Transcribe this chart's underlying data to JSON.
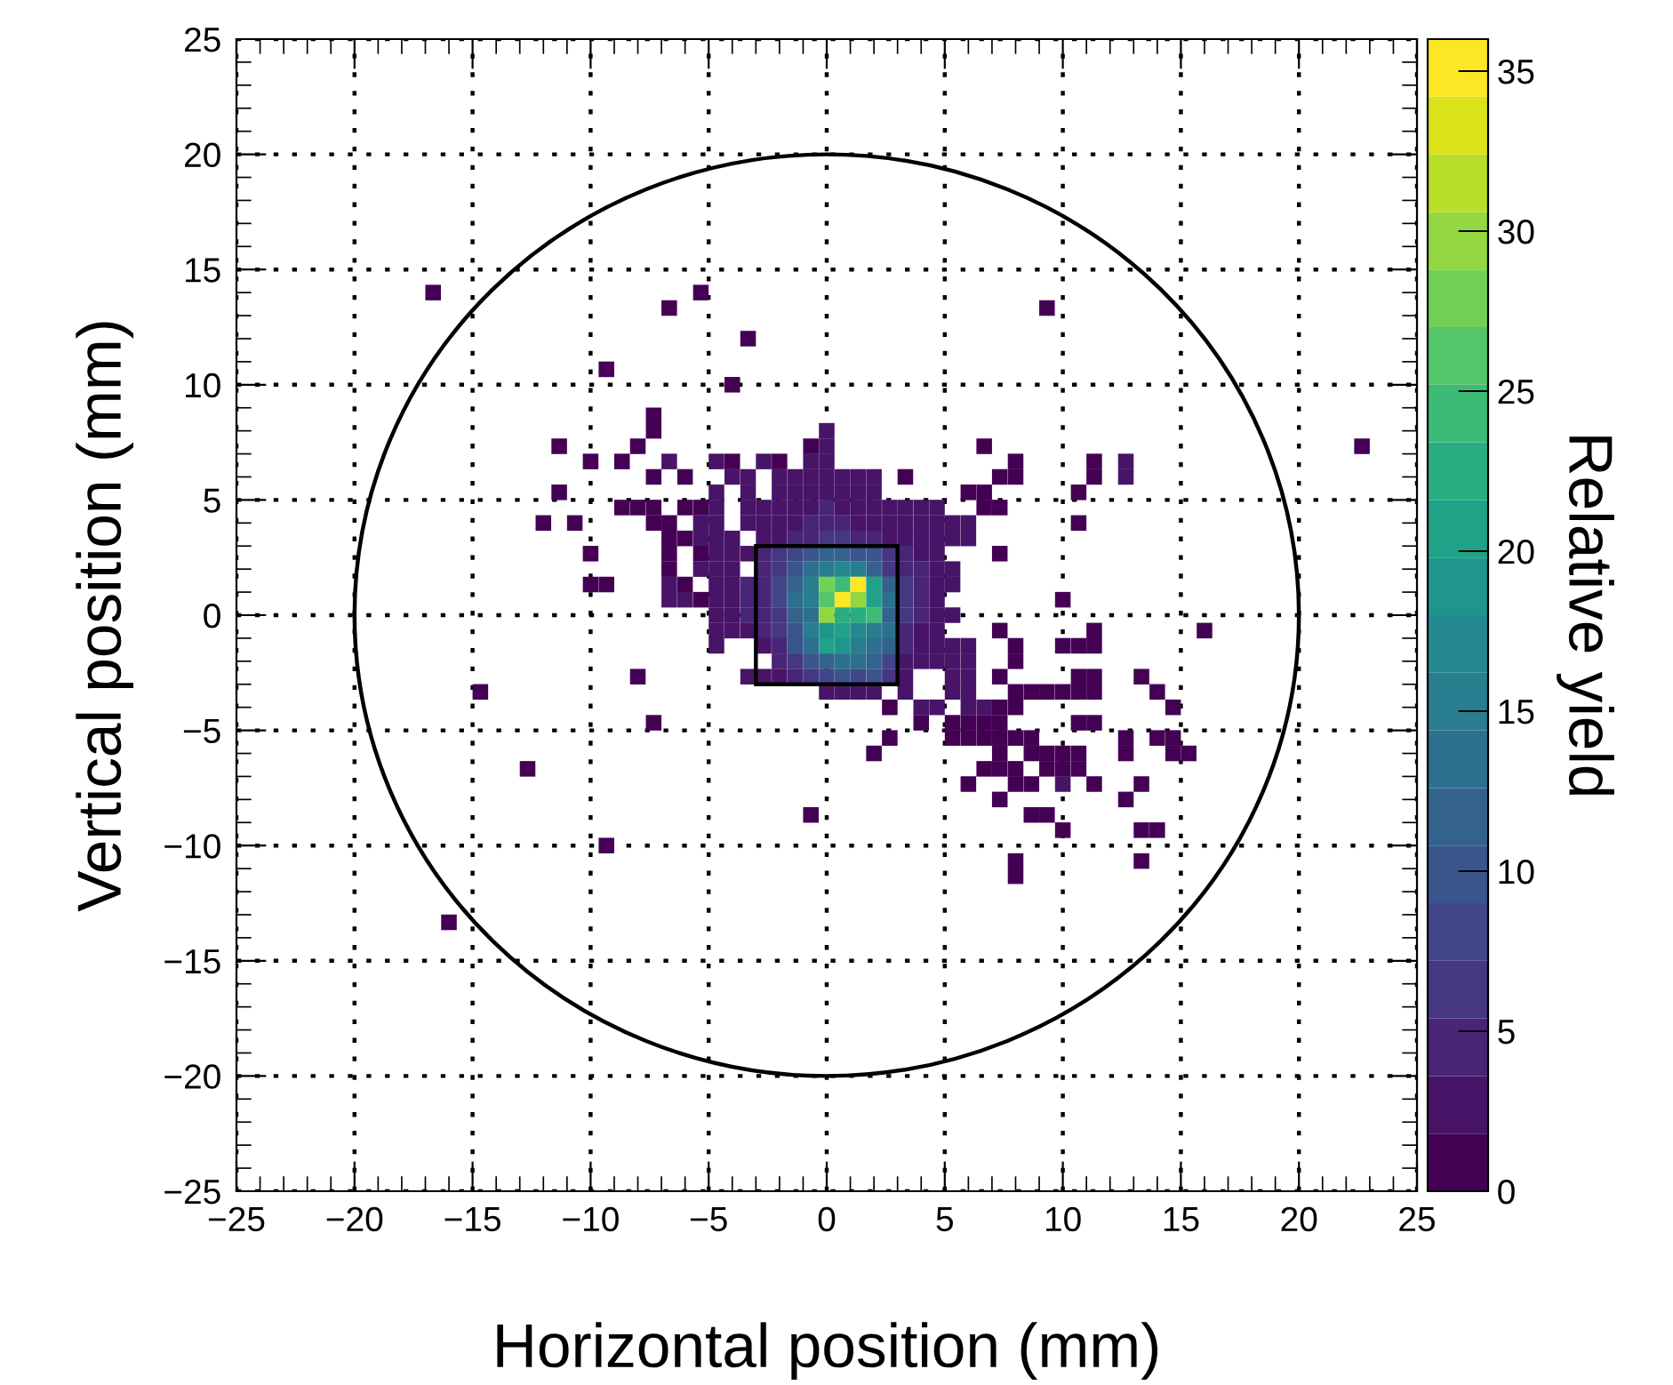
{
  "chart_data": {
    "type": "scatter",
    "xlabel": "Horizontal position (mm)",
    "ylabel": "Vertical position (mm)",
    "clabel": "Relative yield",
    "xlim": [
      -25,
      25
    ],
    "ylim": [
      -25,
      25
    ],
    "xticks": [
      {
        "value": -25,
        "label": "−25"
      },
      {
        "value": -20,
        "label": "−20"
      },
      {
        "value": -15,
        "label": "−15"
      },
      {
        "value": -10,
        "label": "−10"
      },
      {
        "value": -5,
        "label": "−5"
      },
      0,
      5,
      10,
      15,
      20,
      25
    ],
    "yticks": [
      {
        "value": -25,
        "label": "−25"
      },
      {
        "value": -20,
        "label": "−20"
      },
      {
        "value": -15,
        "label": "−15"
      },
      {
        "value": -10,
        "label": "−10"
      },
      {
        "value": -5,
        "label": "−5"
      },
      0,
      5,
      10,
      15,
      20,
      25
    ],
    "clim": [
      0,
      36
    ],
    "cticks": [
      0,
      5,
      10,
      15,
      20,
      25,
      30,
      35
    ],
    "grid": true,
    "series": [
      {
        "marker": "square",
        "x": [
          -16.67,
          -5.33,
          -6.67,
          9.33,
          -3.33,
          -9.33,
          -4,
          -7.33,
          -7.33,
          0,
          -11.33,
          -8,
          -0.67,
          0,
          6.67,
          22.67,
          -10,
          -8.67,
          -6.67,
          -4.67,
          -4,
          -2.67,
          -2,
          -0.67,
          0,
          8,
          11.33,
          12.67,
          -7.33,
          -6,
          -4,
          -3.33,
          -2,
          -1.33,
          -0.67,
          0,
          0.67,
          1.33,
          2,
          3.33,
          7.33,
          8,
          11.33,
          12.67,
          -11.33,
          -4.67,
          -3.33,
          -2,
          -1.33,
          -0.67,
          0,
          0.67,
          1.33,
          2,
          6,
          6.67,
          10.67,
          -8.67,
          -8,
          -7.33,
          -6,
          -5.33,
          -4.67,
          -3.33,
          -2.67,
          -2,
          -1.33,
          -0.67,
          0,
          0.67,
          1.33,
          2,
          2.67,
          3.33,
          4,
          4.67,
          6.67,
          7.33,
          -12,
          -10.67,
          -7.33,
          -6.67,
          -5.33,
          -4.67,
          -3.33,
          -2.67,
          -2,
          -1.33,
          -0.67,
          0,
          0.67,
          1.33,
          2,
          2.67,
          3.33,
          4,
          4.67,
          5.33,
          6,
          10.67,
          -6.67,
          -6,
          -5.33,
          -4.67,
          -4,
          -2.67,
          -2,
          -1.33,
          -0.67,
          0,
          0.67,
          1.33,
          2,
          2.67,
          3.33,
          4,
          4.67,
          5.33,
          6,
          -10,
          -6.67,
          -5.33,
          -4.67,
          -4,
          -3.33,
          -2.67,
          -2,
          -1.33,
          -0.67,
          0,
          0.67,
          1.33,
          2,
          2.67,
          3.33,
          4,
          4.67,
          7.33,
          -6.67,
          -5.33,
          -4.67,
          -4,
          -2.67,
          -2,
          -1.33,
          -0.67,
          0,
          0.67,
          1.33,
          2,
          2.67,
          3.33,
          4,
          4.67,
          5.33,
          -10,
          -9.33,
          -6.67,
          -6,
          -4.67,
          -4,
          -3.33,
          -2.67,
          -2,
          -1.33,
          -0.67,
          0,
          0.67,
          1.33,
          2,
          2.67,
          3.33,
          4,
          4.67,
          5.33,
          -6.67,
          -6,
          -5.33,
          -4.67,
          -4,
          -3.33,
          -2.67,
          -2,
          -1.33,
          -0.67,
          0,
          0.67,
          1.33,
          2,
          2.67,
          3.33,
          4,
          4.67,
          10,
          -4.67,
          -4,
          -3.33,
          -2.67,
          -2,
          -1.33,
          -0.67,
          0,
          0.67,
          1.33,
          2,
          2.67,
          3.33,
          4,
          4.67,
          5.33,
          -4.67,
          -4,
          -3.33,
          -2.67,
          -2,
          -1.33,
          -0.67,
          0,
          0.67,
          1.33,
          2,
          2.67,
          3.33,
          4,
          4.67,
          7.33,
          11.33,
          16,
          -4.67,
          -2.67,
          -2,
          -1.33,
          -0.67,
          0,
          0.67,
          1.33,
          2,
          2.67,
          3.33,
          4,
          4.67,
          5.33,
          6,
          8,
          10,
          10.67,
          11.33,
          -2,
          -1.33,
          -0.67,
          0,
          0.67,
          1.33,
          2,
          2.67,
          3.33,
          4,
          4.67,
          5.33,
          6,
          8,
          -8,
          -3.33,
          -2.67,
          -2,
          -1.33,
          -0.67,
          0,
          0.67,
          1.33,
          2,
          2.67,
          3.33,
          5.33,
          6,
          7.33,
          10.67,
          11.33,
          13.33,
          -14.67,
          0,
          0.67,
          1.33,
          2,
          3.33,
          5.33,
          6,
          8,
          8.67,
          9.33,
          10,
          10.67,
          11.33,
          14,
          2.67,
          4,
          4.67,
          6,
          6.67,
          7.33,
          8,
          14.67,
          -7.33,
          4,
          5.33,
          6,
          6.67,
          7.33,
          10.67,
          11.33,
          2.67,
          5.33,
          6,
          6.67,
          7.33,
          8,
          8.67,
          12.67,
          14,
          14.67,
          2,
          7.33,
          8.67,
          9.33,
          10,
          10.67,
          12.67,
          14.67,
          15.33,
          -12.67,
          6.67,
          7.33,
          8,
          9.33,
          10,
          10.67,
          6,
          8,
          8.67,
          10,
          11.33,
          13.33,
          7.33,
          12.67,
          -0.67,
          8.67,
          9.33,
          10,
          13.33,
          14,
          -9.33,
          8,
          13.33,
          8,
          -16
        ],
        "values": [
          14,
          14,
          13.33,
          13.33,
          12,
          10.67,
          10,
          8.67,
          8,
          8,
          7.33,
          7.33,
          7.33,
          7.33,
          7.33,
          7.33,
          6.67,
          6.67,
          6.67,
          6.67,
          6.67,
          6.67,
          6.67,
          6.67,
          6.67,
          6.67,
          6.67,
          6.67,
          6,
          6,
          6,
          6,
          6,
          6,
          6,
          6,
          6,
          6,
          6,
          6,
          6,
          6,
          6,
          6,
          5.33,
          5.33,
          5.33,
          5.33,
          5.33,
          5.33,
          5.33,
          5.33,
          5.33,
          5.33,
          5.33,
          5.33,
          5.33,
          4.67,
          4.67,
          4.67,
          4.67,
          4.67,
          4.67,
          4.67,
          4.67,
          4.67,
          4.67,
          4.67,
          4.67,
          4.67,
          4.67,
          4.67,
          4.67,
          4.67,
          4.67,
          4.67,
          4.67,
          4.67,
          4,
          4,
          4,
          4,
          4,
          4,
          4,
          4,
          4,
          4,
          4,
          4,
          4,
          4,
          4,
          4,
          4,
          4,
          4,
          4,
          4,
          4,
          3.33,
          3.33,
          3.33,
          3.33,
          3.33,
          3.33,
          3.33,
          3.33,
          3.33,
          3.33,
          3.33,
          3.33,
          3.33,
          3.33,
          3.33,
          3.33,
          3.33,
          3.33,
          3.33,
          2.67,
          2.67,
          2.67,
          2.67,
          2.67,
          2.67,
          2.67,
          2.67,
          2.67,
          2.67,
          2.67,
          2.67,
          2.67,
          2.67,
          2.67,
          2.67,
          2.67,
          2.67,
          2.67,
          2,
          2,
          2,
          2,
          2,
          2,
          2,
          2,
          2,
          2,
          2,
          2,
          2,
          2,
          2,
          2,
          2,
          1.33,
          1.33,
          1.33,
          1.33,
          1.33,
          1.33,
          1.33,
          1.33,
          1.33,
          1.33,
          1.33,
          1.33,
          1.33,
          1.33,
          1.33,
          1.33,
          1.33,
          1.33,
          1.33,
          1.33,
          0.67,
          0.67,
          0.67,
          0.67,
          0.67,
          0.67,
          0.67,
          0.67,
          0.67,
          0.67,
          0.67,
          0.67,
          0.67,
          0.67,
          0.67,
          0.67,
          0.67,
          0.67,
          0.67,
          0,
          0,
          0,
          0,
          0,
          0,
          0,
          0,
          0,
          0,
          0,
          0,
          0,
          0,
          0,
          0,
          -0.67,
          -0.67,
          -0.67,
          -0.67,
          -0.67,
          -0.67,
          -0.67,
          -0.67,
          -0.67,
          -0.67,
          -0.67,
          -0.67,
          -0.67,
          -0.67,
          -0.67,
          -0.67,
          -0.67,
          -0.67,
          -1.33,
          -1.33,
          -1.33,
          -1.33,
          -1.33,
          -1.33,
          -1.33,
          -1.33,
          -1.33,
          -1.33,
          -1.33,
          -1.33,
          -1.33,
          -1.33,
          -1.33,
          -1.33,
          -1.33,
          -1.33,
          -1.33,
          -2,
          -2,
          -2,
          -2,
          -2,
          -2,
          -2,
          -2,
          -2,
          -2,
          -2,
          -2,
          -2,
          -2,
          -2.67,
          -2.67,
          -2.67,
          -2.67,
          -2.67,
          -2.67,
          -2.67,
          -2.67,
          -2.67,
          -2.67,
          -2.67,
          -2.67,
          -2.67,
          -2.67,
          -2.67,
          -2.67,
          -2.67,
          -2.67,
          -3.33,
          -3.33,
          -3.33,
          -3.33,
          -3.33,
          -3.33,
          -3.33,
          -3.33,
          -3.33,
          -3.33,
          -3.33,
          -3.33,
          -3.33,
          -3.33,
          -3.33,
          -4,
          -4,
          -4,
          -4,
          -4,
          -4,
          -4,
          -4,
          -4.67,
          -4.67,
          -4.67,
          -4.67,
          -4.67,
          -4.67,
          -4.67,
          -4.67,
          -5.33,
          -5.33,
          -5.33,
          -5.33,
          -5.33,
          -5.33,
          -5.33,
          -5.33,
          -5.33,
          -5.33,
          -6,
          -6,
          -6,
          -6,
          -6,
          -6,
          -6,
          -6,
          -6,
          -6.67,
          -6.67,
          -6.67,
          -6.67,
          -6.67,
          -6.67,
          -6.67,
          -7.33,
          -7.33,
          -7.33,
          -7.33,
          -7.33,
          -7.33,
          -8,
          -8,
          -8.67,
          -8.67,
          -8.67,
          -9.33,
          -9.33,
          -9.33,
          -10,
          -10.67,
          -10.67,
          -11.33,
          -13.33
        ],
        "cvalues": [
          1,
          1,
          1,
          1,
          1,
          1,
          1,
          1,
          1,
          2,
          1,
          1,
          1,
          2,
          1,
          1,
          1,
          1,
          2,
          2,
          1,
          2,
          1,
          2,
          2,
          1,
          1,
          3,
          1,
          1,
          2,
          2,
          2,
          2,
          2,
          3,
          2,
          2,
          2,
          1,
          1,
          1,
          1,
          2,
          1,
          2,
          3,
          2,
          2,
          2,
          3,
          3,
          2,
          2,
          1,
          1,
          1,
          1,
          1,
          1,
          1,
          1,
          2,
          2,
          2,
          3,
          3,
          3,
          4,
          3,
          3,
          3,
          2,
          2,
          2,
          2,
          1,
          1,
          1,
          1,
          1,
          1,
          2,
          2,
          2,
          3,
          3,
          3,
          4,
          5,
          4,
          3,
          3,
          3,
          3,
          2,
          2,
          2,
          2,
          1,
          1,
          1,
          2,
          2,
          2,
          3,
          3,
          4,
          5,
          6,
          6,
          5,
          4,
          3,
          3,
          3,
          2,
          2,
          2,
          1,
          1,
          1,
          2,
          3,
          3,
          5,
          6,
          8,
          10,
          12,
          11,
          10,
          9,
          6,
          4,
          3,
          2,
          1,
          1,
          3,
          2,
          3,
          5,
          7,
          10,
          14,
          16,
          17,
          15,
          12,
          7,
          5,
          4,
          3,
          2,
          1,
          1,
          2,
          1,
          3,
          3,
          4,
          4,
          8,
          12,
          15,
          28,
          25,
          35,
          20,
          12,
          6,
          4,
          3,
          2,
          2,
          2,
          1,
          3,
          3,
          4,
          5,
          8,
          14,
          16,
          26,
          35,
          30,
          20,
          14,
          7,
          4,
          3,
          1,
          3,
          3,
          4,
          4,
          7,
          12,
          14,
          30,
          23,
          22,
          25,
          12,
          6,
          4,
          3,
          2,
          2,
          3,
          3,
          4,
          6,
          10,
          15,
          18,
          20,
          17,
          16,
          13,
          5,
          3,
          3,
          1,
          1,
          1,
          2,
          3,
          5,
          9,
          13,
          20,
          18,
          16,
          14,
          11,
          4,
          3,
          2,
          2,
          2,
          1,
          1,
          1,
          1,
          4,
          6,
          10,
          12,
          14,
          13,
          12,
          8,
          3,
          3,
          2,
          2,
          2,
          1,
          1,
          2,
          2,
          3,
          4,
          6,
          8,
          9,
          8,
          10,
          6,
          3,
          2,
          2,
          1,
          1,
          1,
          1,
          1,
          3,
          3,
          3,
          2,
          2,
          2,
          2,
          1,
          1,
          1,
          1,
          1,
          1,
          1,
          1,
          2,
          2,
          2,
          2,
          1,
          1,
          1,
          1,
          1,
          1,
          1,
          1,
          1,
          1,
          1,
          1,
          1,
          1,
          1,
          1,
          1,
          1,
          1,
          1,
          1,
          1,
          1,
          1,
          1,
          1,
          1,
          1,
          1,
          1,
          1,
          1,
          1,
          1,
          1,
          1,
          1,
          1,
          1,
          1,
          2,
          1,
          1,
          1,
          1,
          1,
          1,
          1,
          1,
          1,
          1,
          1,
          1,
          1,
          1,
          1
        ]
      }
    ]
  }
}
